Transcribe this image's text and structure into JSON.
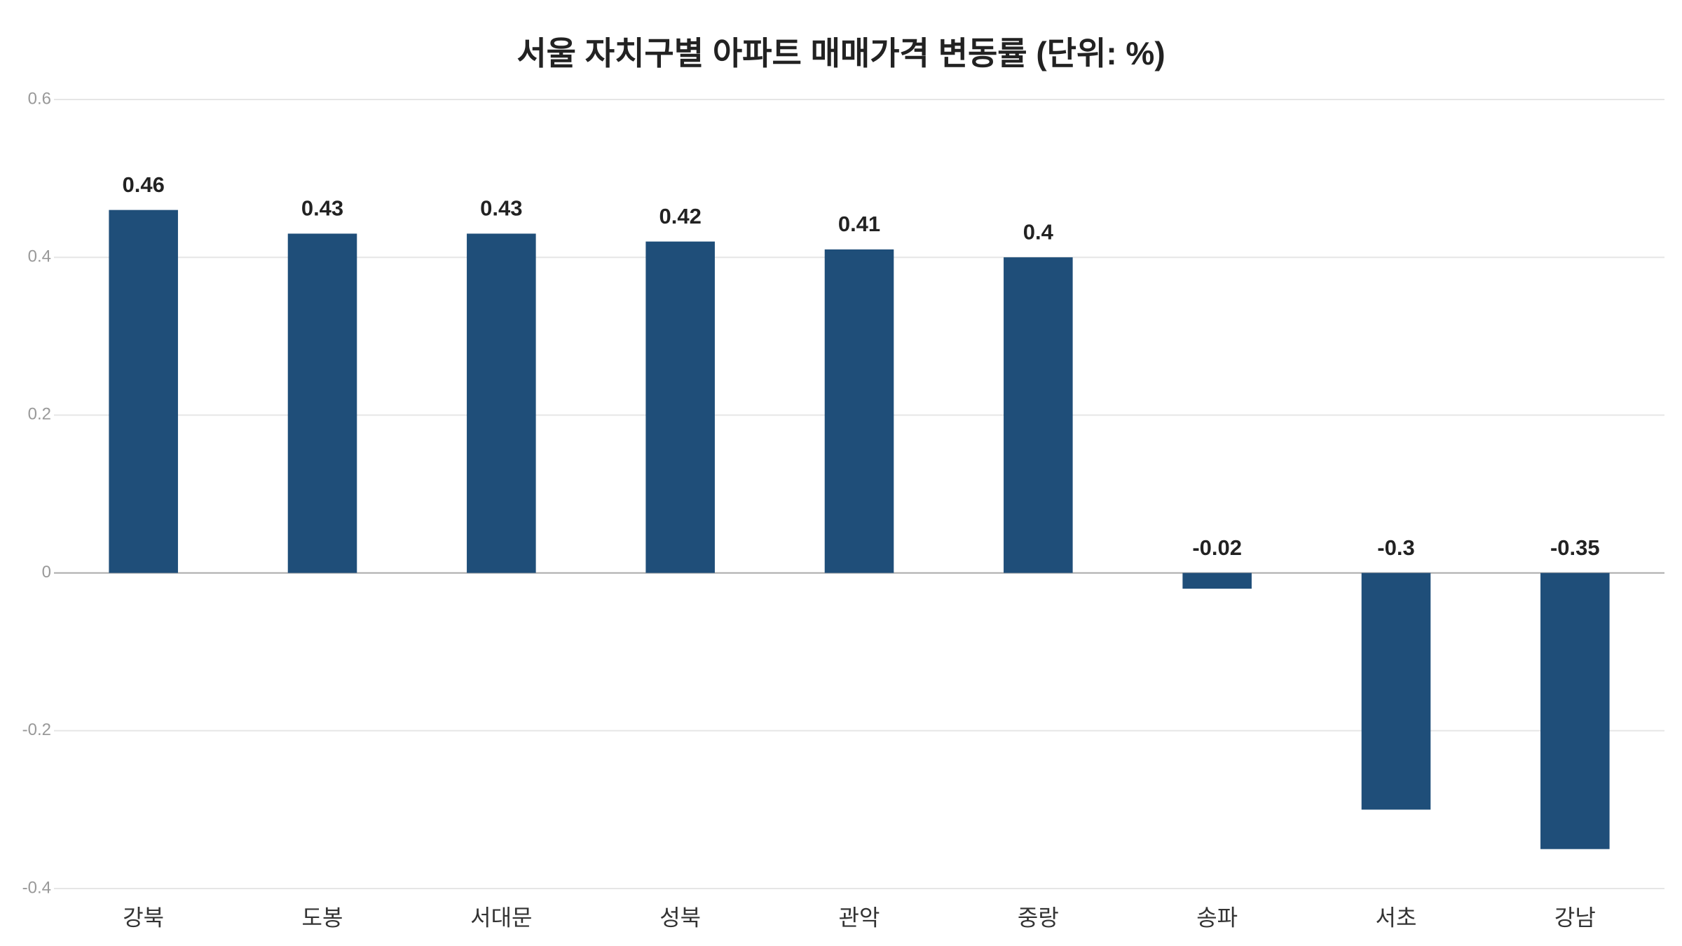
{
  "chart_data": {
    "type": "bar",
    "title": "서울 자치구별 아파트 매매가격 변동률 (단위: %)",
    "categories": [
      "강북",
      "도봉",
      "서대문",
      "성북",
      "관악",
      "중랑",
      "송파",
      "서초",
      "강남"
    ],
    "values": [
      0.46,
      0.43,
      0.43,
      0.42,
      0.41,
      0.4,
      -0.02,
      -0.3,
      -0.35
    ],
    "color": "#1f4e79",
    "ylim": [
      -0.4,
      0.6
    ],
    "yticks": [
      -0.4,
      -0.2,
      0,
      0.2,
      0.4,
      0.6
    ],
    "grid": true
  }
}
